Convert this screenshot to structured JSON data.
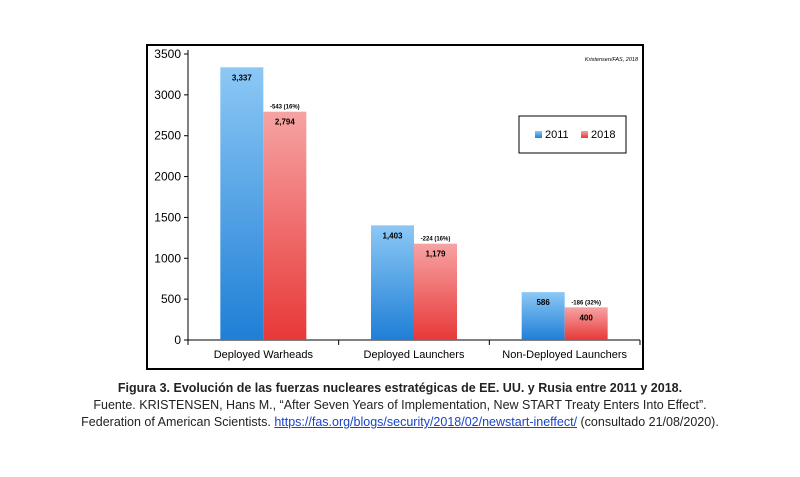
{
  "chart_data": {
    "type": "bar",
    "categories": [
      "Deployed Warheads",
      "Deployed Launchers",
      "Non-Deployed Launchers"
    ],
    "series": [
      {
        "name": "2011",
        "values": [
          3337,
          1403,
          586
        ],
        "labels": [
          "3,337",
          "1,403",
          "586"
        ]
      },
      {
        "name": "2018",
        "values": [
          2794,
          1179,
          400
        ],
        "labels": [
          "2,794",
          "1,179",
          "400"
        ]
      }
    ],
    "change_annotations": [
      "-543 (16%)",
      "-224 (16%)",
      "-186 (32%)"
    ],
    "y_ticks": [
      0,
      500,
      1000,
      1500,
      2000,
      2500,
      3000,
      3500
    ],
    "ylim": [
      0,
      3500
    ],
    "credit": "Kristensen/FAS, 2018",
    "legend_position": "right",
    "colors": {
      "2011": "#3a93e0",
      "2018": "#ef4d4d"
    }
  },
  "caption": {
    "title": "Figura 3. Evolución de las fuerzas nucleares estratégicas de EE. UU. y Rusia entre 2011 y 2018.",
    "line2": "Fuente. KRISTENSEN, Hans M., “After Seven Years of Implementation, New START Treaty Enters Into Effect”.",
    "line3_prefix": "Federation of American Scientists. ",
    "link": "https://fas.org/blogs/security/2018/02/newstart-ineffect/",
    "line3_suffix": " (consultado 21/08/2020)."
  }
}
